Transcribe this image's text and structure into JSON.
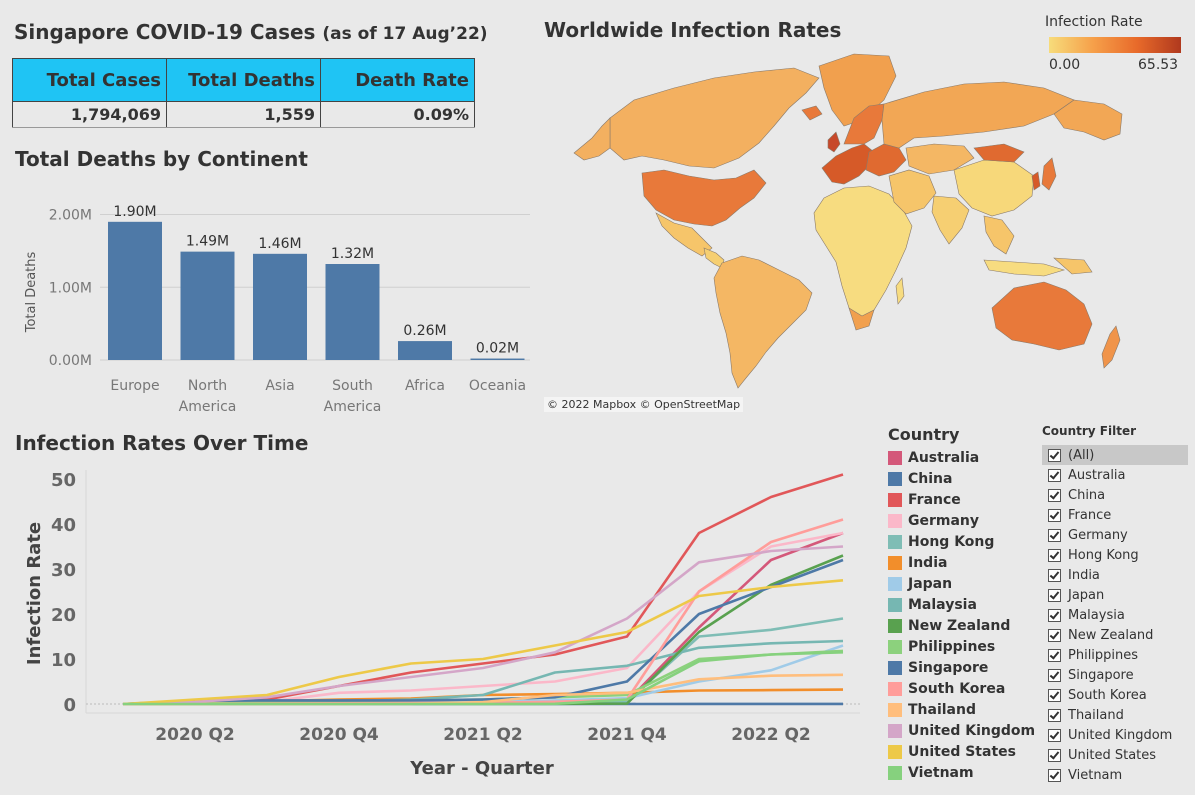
{
  "kpi": {
    "title": "Singapore COVID-19 Cases",
    "subtitle": "(as of 17 Aug’22)",
    "headers": [
      "Total Cases",
      "Total Deaths",
      "Death Rate"
    ],
    "values": [
      "1,794,069",
      "1,559",
      "0.09%"
    ],
    "header_color": "#1fc4f4"
  },
  "map": {
    "title": "Worldwide Infection Rates",
    "legend_title": "Infection Rate",
    "legend_min": "0.00",
    "legend_max": "65.53",
    "attribution": "© 2022 Mapbox © OpenStreetMap",
    "ocean_color": "#e9e9e9"
  },
  "chart_data": [
    {
      "type": "bar",
      "title": "Total Deaths by Continent",
      "ylabel": "Total Deaths",
      "categories": [
        "Europe",
        "North America",
        "Asia",
        "South America",
        "Africa",
        "Oceania"
      ],
      "category_lines": [
        [
          "Europe"
        ],
        [
          "North",
          "America"
        ],
        [
          "Asia"
        ],
        [
          "South",
          "America"
        ],
        [
          "Africa"
        ],
        [
          "Oceania"
        ]
      ],
      "values": [
        1.9,
        1.49,
        1.46,
        1.32,
        0.26,
        0.02
      ],
      "data_labels": [
        "1.90M",
        "1.49M",
        "1.46M",
        "1.32M",
        "0.26M",
        "0.02M"
      ],
      "yticks": [
        0,
        1,
        2
      ],
      "ytick_labels": [
        "0.00M",
        "1.00M",
        "2.00M"
      ],
      "ylim": [
        0,
        2.2
      ],
      "bar_color": "#4e79a7",
      "grid": true
    },
    {
      "type": "line",
      "title": "Infection Rates Over Time",
      "xlabel": "Year - Quarter",
      "ylabel": "Infection Rate",
      "x": [
        "2020 Q1",
        "2020 Q2",
        "2020 Q3",
        "2020 Q4",
        "2021 Q1",
        "2021 Q2",
        "2021 Q3",
        "2021 Q4",
        "2022 Q1",
        "2022 Q2",
        "2022 Q3"
      ],
      "xtick_labels": [
        "2020 Q2",
        "2020 Q4",
        "2021 Q2",
        "2021 Q4",
        "2022 Q2"
      ],
      "xtick_index": [
        1,
        3,
        5,
        7,
        9
      ],
      "yticks": [
        0,
        10,
        20,
        30,
        40,
        50
      ],
      "ylim": [
        -2,
        52
      ],
      "legend_title": "Country",
      "series": [
        {
          "name": "Australia",
          "color": "#d4587a",
          "values": [
            0,
            0.1,
            0.1,
            0.1,
            0.1,
            0.1,
            0.2,
            0.5,
            17,
            32,
            38
          ]
        },
        {
          "name": "China",
          "color": "#4e79a7",
          "values": [
            0,
            0.01,
            0.01,
            0.01,
            0.01,
            0.01,
            0.01,
            0.01,
            0.02,
            0.02,
            0.03
          ]
        },
        {
          "name": "France",
          "color": "#e15759",
          "values": [
            0,
            0.5,
            1,
            4,
            7,
            9,
            11,
            15,
            38,
            46,
            51
          ]
        },
        {
          "name": "Germany",
          "color": "#fbb8c9",
          "values": [
            0,
            0.2,
            0.5,
            2.5,
            3,
            4,
            5,
            8,
            25,
            35,
            38
          ]
        },
        {
          "name": "Hong Kong",
          "color": "#7fbdb5",
          "values": [
            0,
            0.1,
            0.2,
            0.3,
            0.3,
            0.3,
            0.4,
            0.5,
            15,
            16.5,
            19
          ]
        },
        {
          "name": "India",
          "color": "#f28e2b",
          "values": [
            0,
            0.2,
            0.6,
            1,
            1.2,
            2,
            2.2,
            2.5,
            3,
            3.1,
            3.2
          ]
        },
        {
          "name": "Japan",
          "color": "#a0cbe8",
          "values": [
            0,
            0.05,
            0.1,
            0.2,
            0.3,
            0.5,
            0.8,
            1.3,
            5,
            7.5,
            13
          ]
        },
        {
          "name": "Malaysia",
          "color": "#76b7b2",
          "values": [
            0,
            0.1,
            0.3,
            0.5,
            1,
            2,
            7,
            8.5,
            12.5,
            13.5,
            14
          ]
        },
        {
          "name": "New Zealand",
          "color": "#59a14f",
          "values": [
            0,
            0.05,
            0.05,
            0.05,
            0.05,
            0.05,
            0.05,
            0.1,
            16,
            26.5,
            33
          ]
        },
        {
          "name": "Philippines",
          "color": "#8cd17d",
          "values": [
            0,
            0.1,
            0.3,
            0.6,
            0.8,
            1,
            1.5,
            2,
            10,
            11,
            11.8
          ]
        },
        {
          "name": "Singapore",
          "color": "#4e79a7",
          "values": [
            0,
            0.7,
            0.8,
            0.8,
            0.8,
            1,
            1.5,
            5,
            20,
            26,
            32
          ]
        },
        {
          "name": "South Korea",
          "color": "#ff9d9a",
          "values": [
            0,
            0.05,
            0.1,
            0.15,
            0.2,
            0.3,
            0.5,
            1,
            25,
            36,
            41
          ]
        },
        {
          "name": "Thailand",
          "color": "#ffbe7d",
          "values": [
            0,
            0.01,
            0.01,
            0.01,
            0.05,
            0.4,
            2,
            2.5,
            5.5,
            6.3,
            6.5
          ]
        },
        {
          "name": "United Kingdom",
          "color": "#d4a6c8",
          "values": [
            0,
            0.5,
            1.5,
            4,
            6,
            8,
            11.5,
            19,
            31.5,
            34,
            35
          ]
        },
        {
          "name": "United States",
          "color": "#edc948",
          "values": [
            0,
            1,
            2,
            6,
            9,
            10,
            13,
            16,
            24,
            26,
            27.5
          ]
        },
        {
          "name": "Vietnam",
          "color": "#86d17e",
          "values": [
            0,
            0.01,
            0.01,
            0.01,
            0.01,
            0.01,
            0.05,
            1,
            9.5,
            11,
            11.5
          ]
        }
      ]
    }
  ],
  "filter": {
    "title": "Country Filter",
    "items": [
      "(All)",
      "Australia",
      "China",
      "France",
      "Germany",
      "Hong Kong",
      "India",
      "Japan",
      "Malaysia",
      "New Zealand",
      "Philippines",
      "Singapore",
      "South Korea",
      "Thailand",
      "United Kingdom",
      "United States",
      "Vietnam"
    ]
  }
}
